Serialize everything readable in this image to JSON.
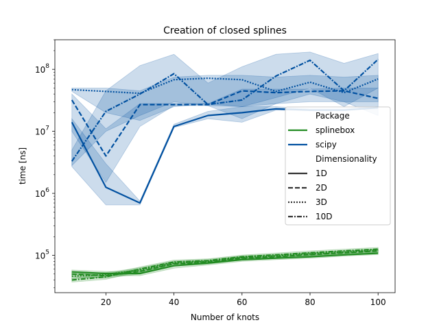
{
  "chart_data": {
    "type": "line",
    "title": "Creation of closed splines",
    "xlabel": "Number of knots",
    "ylabel": "time [ns]",
    "x": [
      10,
      20,
      30,
      40,
      50,
      60,
      70,
      80,
      90,
      100
    ],
    "xlim": [
      5,
      105
    ],
    "xticks": [
      20,
      40,
      60,
      80,
      100
    ],
    "xtick_labels": [
      "20",
      "40",
      "60",
      "80",
      "100"
    ],
    "yscale": "log",
    "ylim": [
      25000,
      300000000
    ],
    "yticks": [
      100000,
      1000000,
      10000000,
      100000000
    ],
    "ytick_labels": [
      "10^5",
      "10^6",
      "10^7",
      "10^8"
    ],
    "grid": false,
    "legend": {
      "position": "right",
      "hue_title": "Package",
      "style_title": "Dimensionality",
      "hue_entries": [
        {
          "label": "splinebox",
          "color": "#228b22"
        },
        {
          "label": "scipy",
          "color": "#0050a0"
        }
      ],
      "style_entries": [
        {
          "label": "1D",
          "dash": "solid"
        },
        {
          "label": "2D",
          "dash": "dashed"
        },
        {
          "label": "3D",
          "dash": "dotted"
        },
        {
          "label": "10D",
          "dash": "dashdot"
        }
      ]
    },
    "series": [
      {
        "package": "scipy",
        "dimensionality": "1D",
        "color": "#0050a0",
        "dash": "solid",
        "values": [
          14000000,
          1250000,
          700000,
          12000000,
          18000000,
          20000000,
          23000000,
          22000000,
          22000000,
          24000000
        ],
        "lower": [
          2700000,
          650000,
          650000,
          11500000,
          16000000,
          14000000,
          22000000,
          21500000,
          21500000,
          23500000
        ],
        "upper": [
          16000000,
          3000000,
          750000,
          13000000,
          21000000,
          25000000,
          25000000,
          23000000,
          23000000,
          25000000
        ]
      },
      {
        "package": "scipy",
        "dimensionality": "2D",
        "color": "#0050a0",
        "dash": "dashed",
        "values": [
          32000000,
          4000000,
          27000000,
          27000000,
          27000000,
          45000000,
          42000000,
          44000000,
          45000000,
          34000000
        ],
        "lower": [
          10000000,
          1500000,
          12000000,
          26000000,
          26000000,
          16000000,
          28000000,
          30000000,
          30000000,
          18000000
        ],
        "upper": [
          40000000,
          11000000,
          28000000,
          28000000,
          28000000,
          48000000,
          48000000,
          48000000,
          50000000,
          50000000
        ]
      },
      {
        "package": "scipy",
        "dimensionality": "3D",
        "color": "#0050a0",
        "dash": "dotted",
        "values": [
          47000000,
          44000000,
          41000000,
          68000000,
          72000000,
          68000000,
          44000000,
          62000000,
          42000000,
          70000000
        ],
        "lower": [
          44000000,
          20000000,
          15000000,
          25000000,
          28000000,
          25000000,
          28000000,
          40000000,
          30000000,
          30000000
        ],
        "upper": [
          50000000,
          50000000,
          45000000,
          75000000,
          80000000,
          80000000,
          75000000,
          80000000,
          75000000,
          80000000
        ]
      },
      {
        "package": "scipy",
        "dimensionality": "10D",
        "color": "#0050a0",
        "dash": "dashdot",
        "values": [
          3300000,
          21000000,
          40000000,
          85000000,
          27000000,
          32000000,
          78000000,
          140000000,
          45000000,
          145000000
        ],
        "lower": [
          2800000,
          10000000,
          18000000,
          30000000,
          26000000,
          25000000,
          35000000,
          50000000,
          25000000,
          50000000
        ],
        "upper": [
          5000000,
          45000000,
          115000000,
          175000000,
          60000000,
          110000000,
          175000000,
          190000000,
          125000000,
          180000000
        ]
      },
      {
        "package": "splinebox",
        "dimensionality": "1D",
        "color": "#228b22",
        "dash": "solid",
        "values": [
          54000,
          51000,
          51000,
          68000,
          75000,
          85000,
          90000,
          95000,
          102000,
          108000
        ],
        "lower": [
          50000,
          47000,
          47000,
          62000,
          70000,
          80000,
          85000,
          90000,
          97000,
          103000
        ],
        "upper": [
          58000,
          55000,
          55000,
          74000,
          80000,
          90000,
          95000,
          100000,
          107000,
          113000
        ]
      },
      {
        "package": "splinebox",
        "dimensionality": "2D",
        "color": "#228b22",
        "dash": "dashed",
        "values": [
          50000,
          47000,
          55000,
          73000,
          77000,
          90000,
          95000,
          103000,
          110000,
          118000
        ],
        "lower": [
          45000,
          43000,
          50000,
          67000,
          72000,
          84000,
          89000,
          96000,
          103000,
          111000
        ],
        "upper": [
          55000,
          51000,
          60000,
          79000,
          82000,
          96000,
          101000,
          110000,
          117000,
          125000
        ]
      },
      {
        "package": "splinebox",
        "dimensionality": "3D",
        "color": "#228b22",
        "dash": "dotted",
        "values": [
          46000,
          49000,
          58000,
          75000,
          80000,
          92000,
          98000,
          105000,
          112000,
          120000
        ],
        "lower": [
          42000,
          45000,
          53000,
          69000,
          74000,
          86000,
          92000,
          98000,
          105000,
          113000
        ],
        "upper": [
          50000,
          53000,
          63000,
          81000,
          86000,
          98000,
          104000,
          112000,
          119000,
          127000
        ]
      },
      {
        "package": "splinebox",
        "dimensionality": "10D",
        "color": "#228b22",
        "dash": "dashdot",
        "values": [
          40000,
          45000,
          60000,
          78000,
          82000,
          95000,
          102000,
          110000,
          118000,
          126000
        ],
        "lower": [
          37000,
          41000,
          55000,
          72000,
          76000,
          89000,
          95000,
          102000,
          110000,
          118000
        ],
        "upper": [
          43000,
          49000,
          65000,
          84000,
          88000,
          101000,
          109000,
          118000,
          126000,
          134000
        ]
      }
    ]
  }
}
